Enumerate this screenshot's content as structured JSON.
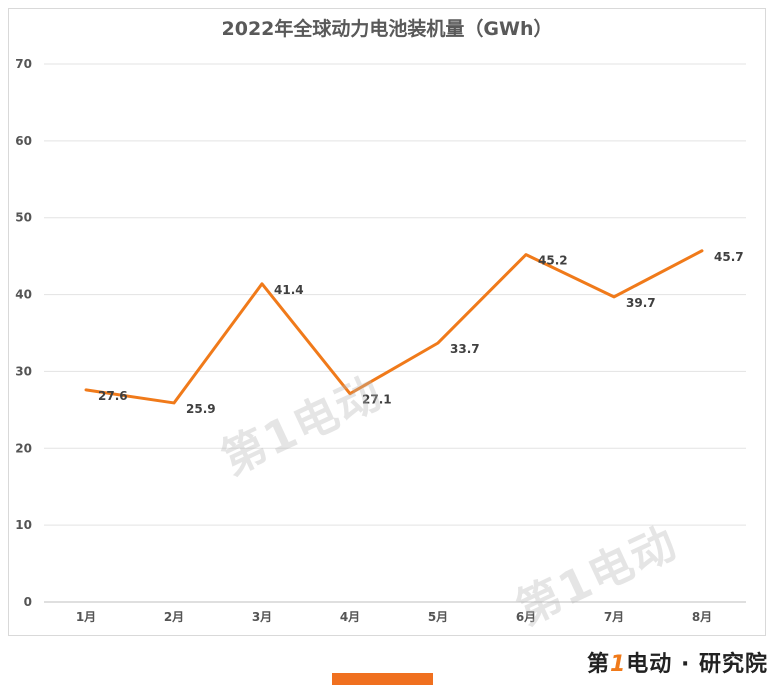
{
  "brand": {
    "text_a": "第",
    "text_one": "1",
    "text_b": "电动",
    "separator": "·",
    "text_c": "研究院"
  },
  "watermark": {
    "text": "第1电动"
  },
  "chart_data": {
    "type": "line",
    "title": "2022年全球动力电池装机量（GWh）",
    "xlabel": "",
    "ylabel": "",
    "categories": [
      "1月",
      "2月",
      "3月",
      "4月",
      "5月",
      "6月",
      "7月",
      "8月"
    ],
    "series": [
      {
        "values": [
          27.6,
          25.9,
          41.4,
          27.1,
          33.7,
          45.2,
          39.7,
          45.7
        ]
      }
    ],
    "ylim": [
      0,
      70
    ],
    "yticks": [
      0,
      10,
      20,
      30,
      40,
      50,
      60,
      70
    ],
    "grid": true,
    "legend": "none",
    "line_color": "#f07a1a"
  }
}
